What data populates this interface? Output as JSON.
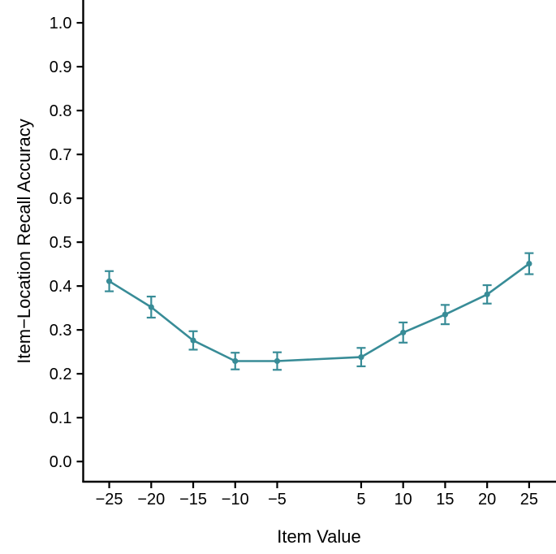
{
  "chart_data": {
    "type": "line",
    "title": "",
    "xlabel": "Item Value",
    "ylabel": "Item−Location Recall Accuracy",
    "grid": false,
    "legend": "none",
    "background_color": "#ffffff",
    "axis_color": "#000000",
    "xlim": [
      -28.1,
      28.2
    ],
    "ylim": [
      -0.046,
      1.052
    ],
    "x_ticks": {
      "values": [
        -25,
        -20,
        -15,
        -10,
        -5,
        5,
        10,
        15,
        20,
        25
      ],
      "labels": [
        "−25",
        "−20",
        "−15",
        "−10",
        "−5",
        "5",
        "10",
        "15",
        "20",
        "25"
      ]
    },
    "y_ticks": {
      "values": [
        0.0,
        0.1,
        0.2,
        0.3,
        0.4,
        0.5,
        0.6,
        0.7,
        0.8,
        0.9,
        1.0
      ],
      "labels": [
        "0.0",
        "0.1",
        "0.2",
        "0.3",
        "0.4",
        "0.5",
        "0.6",
        "0.7",
        "0.8",
        "0.9",
        "1.0"
      ]
    },
    "series": [
      {
        "name": "item-location-recall-accuracy",
        "color": "#388c97",
        "marker": "circle",
        "x": [
          -25,
          -20,
          -15,
          -10,
          -5,
          5,
          10,
          15,
          20,
          25
        ],
        "y": [
          0.411,
          0.352,
          0.276,
          0.229,
          0.229,
          0.238,
          0.294,
          0.335,
          0.381,
          0.451
        ],
        "yerr": [
          0.023,
          0.024,
          0.021,
          0.019,
          0.02,
          0.021,
          0.023,
          0.022,
          0.021,
          0.024
        ]
      }
    ]
  }
}
